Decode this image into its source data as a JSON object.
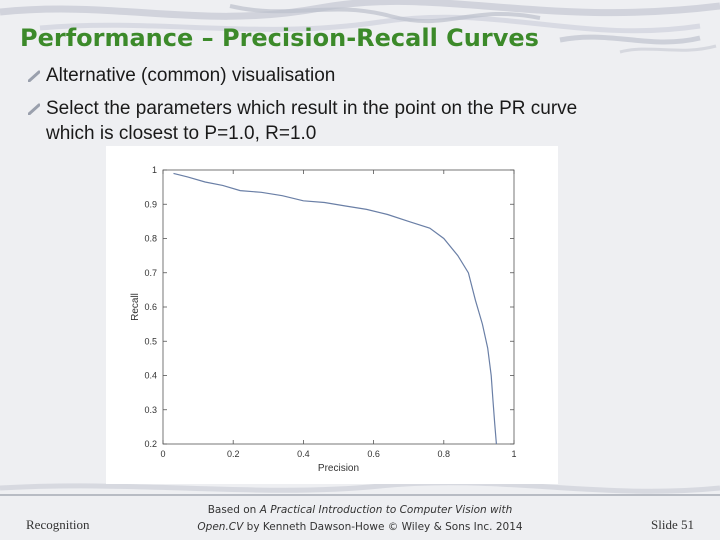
{
  "slide": {
    "title": "Performance – Precision-Recall Curves",
    "bullets": [
      "Alternative (common) visualisation",
      "Select the parameters which result in the point on the PR curve",
      "which is closest to P=1.0, R=1.0"
    ]
  },
  "chart_data": {
    "type": "line",
    "title": "",
    "xlabel": "Precision",
    "ylabel": "Recall",
    "xlim": [
      0,
      1
    ],
    "ylim": [
      0.2,
      1
    ],
    "xticks": [
      "0",
      "0.2",
      "0.4",
      "0.6",
      "0.8",
      "1"
    ],
    "yticks": [
      "0.2",
      "0.3",
      "0.4",
      "0.5",
      "0.6",
      "0.7",
      "0.8",
      "0.9",
      "1"
    ],
    "grid": false,
    "legend": "none",
    "series": [
      {
        "x": [
          0.03,
          0.07,
          0.12,
          0.17,
          0.22,
          0.28,
          0.34,
          0.4,
          0.46,
          0.52,
          0.58,
          0.64,
          0.7,
          0.76,
          0.8,
          0.84,
          0.87,
          0.89,
          0.91,
          0.925,
          0.935,
          0.94,
          0.945,
          0.95
        ],
        "y": [
          0.99,
          0.98,
          0.965,
          0.955,
          0.94,
          0.935,
          0.925,
          0.91,
          0.905,
          0.895,
          0.885,
          0.87,
          0.85,
          0.83,
          0.8,
          0.75,
          0.7,
          0.62,
          0.55,
          0.48,
          0.4,
          0.33,
          0.26,
          0.2
        ],
        "color": "#6a7fa6"
      }
    ]
  },
  "footer": {
    "left": "Recognition",
    "center_line1_prefix": "Based on",
    "center_line1_book": "A Practical Introduction to Computer Vision with",
    "center_line2_book": "Open.CV",
    "center_line2_rest": "by Kenneth Dawson-Howe © Wiley & Sons Inc. 2014",
    "right": "Slide 51"
  }
}
